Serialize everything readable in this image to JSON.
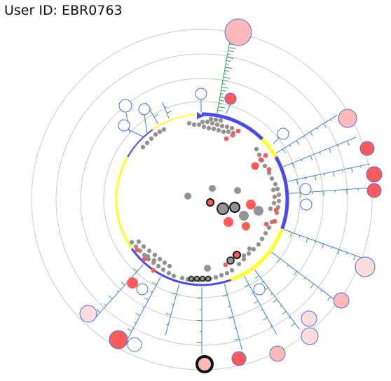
{
  "header": {
    "title": "User ID: EBR0763"
  },
  "colors": {
    "ring": "#c8c8c8",
    "arc_blue": "#4a4af0",
    "arc_yellow": "#ffff22",
    "spoke": "#3b7fd9",
    "tick_green": "#3aa83a",
    "tick_red": "#e03030",
    "node_gray": "#939393",
    "node_red": "#ff5a5a",
    "node_pink": "#ffb8b8",
    "node_light": "#ffdcdc",
    "node_stroke": "#4a6ee8"
  }
}
